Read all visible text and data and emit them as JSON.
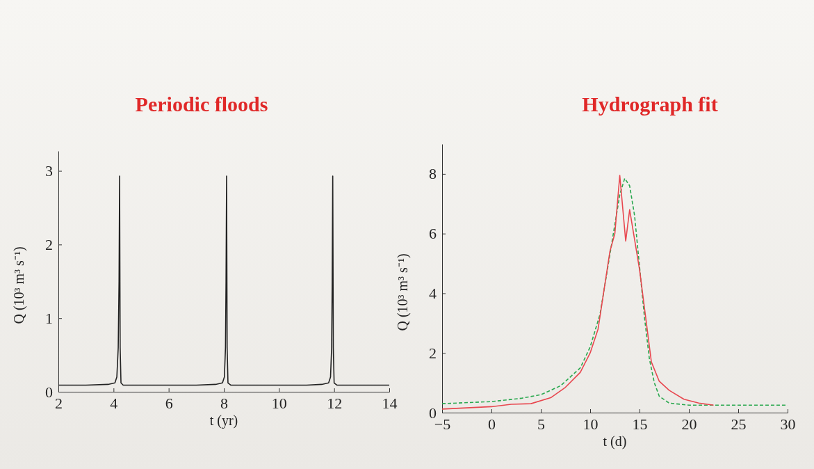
{
  "chart_data": [
    {
      "type": "line",
      "title": "Periodic floods",
      "xlabel": "t (yr)",
      "ylabel": "Q (10³ m³ s⁻¹)",
      "xlim": [
        2,
        14
      ],
      "ylim": [
        0,
        3.27
      ],
      "xticks": [
        2,
        4,
        6,
        8,
        10,
        12,
        14
      ],
      "yticks": [
        0,
        1,
        2,
        3
      ],
      "line_style": "solid",
      "marker": "none",
      "series": [
        {
          "color": "#222222",
          "x": [
            2,
            3,
            3.8,
            4.05,
            4.12,
            4.17,
            4.2,
            4.22,
            4.24,
            4.27,
            4.35,
            5,
            6,
            7,
            7.7,
            7.95,
            8.02,
            8.06,
            8.08,
            8.1,
            8.12,
            8.15,
            8.25,
            9,
            10,
            11,
            11.55,
            11.8,
            11.87,
            11.91,
            11.93,
            11.95,
            11.97,
            12,
            12.1,
            13,
            14
          ],
          "values": [
            0.09,
            0.09,
            0.1,
            0.12,
            0.2,
            0.6,
            1.5,
            2.93,
            0.6,
            0.12,
            0.09,
            0.09,
            0.09,
            0.09,
            0.1,
            0.12,
            0.2,
            0.6,
            1.5,
            2.93,
            0.6,
            0.12,
            0.09,
            0.09,
            0.09,
            0.09,
            0.1,
            0.12,
            0.2,
            0.6,
            1.5,
            2.93,
            0.6,
            0.12,
            0.09,
            0.09,
            0.09
          ]
        }
      ]
    },
    {
      "type": "line",
      "title": "Hydrograph fit",
      "xlabel": "t (d)",
      "ylabel": "Q (10³ m³ s⁻¹)",
      "xlim": [
        -5,
        30
      ],
      "ylim": [
        0,
        9
      ],
      "xticks": [
        {
          "value": -5,
          "label": "−5"
        },
        0,
        5,
        10,
        15,
        20,
        25,
        30
      ],
      "yticks": [
        0,
        2,
        4,
        6,
        8
      ],
      "marker": "none",
      "series": [
        {
          "color": "#e8474f",
          "line_style": "solid",
          "x": [
            -5,
            0,
            2,
            4,
            6,
            7.5,
            9,
            10,
            10.8,
            12,
            12.5,
            13,
            13.6,
            14,
            15,
            16.2,
            17,
            18,
            19.5,
            21,
            22.5
          ],
          "values": [
            0.12,
            0.2,
            0.28,
            0.3,
            0.5,
            0.85,
            1.35,
            2.0,
            2.8,
            5.4,
            6.0,
            7.95,
            5.75,
            6.8,
            4.8,
            1.7,
            1.05,
            0.75,
            0.45,
            0.32,
            0.25
          ]
        },
        {
          "color": "#2aa84f",
          "line_style": "dashed",
          "x": [
            -5,
            0,
            3,
            5,
            7,
            9,
            10,
            11,
            12,
            13,
            13.5,
            14,
            14.5,
            15,
            15.5,
            16,
            16.5,
            17,
            18,
            20,
            25,
            30
          ],
          "values": [
            0.3,
            0.37,
            0.48,
            0.6,
            0.9,
            1.5,
            2.2,
            3.3,
            5.3,
            7.3,
            7.85,
            7.6,
            6.6,
            4.9,
            3.2,
            1.8,
            1.0,
            0.55,
            0.32,
            0.25,
            0.25,
            0.25
          ]
        }
      ]
    }
  ]
}
